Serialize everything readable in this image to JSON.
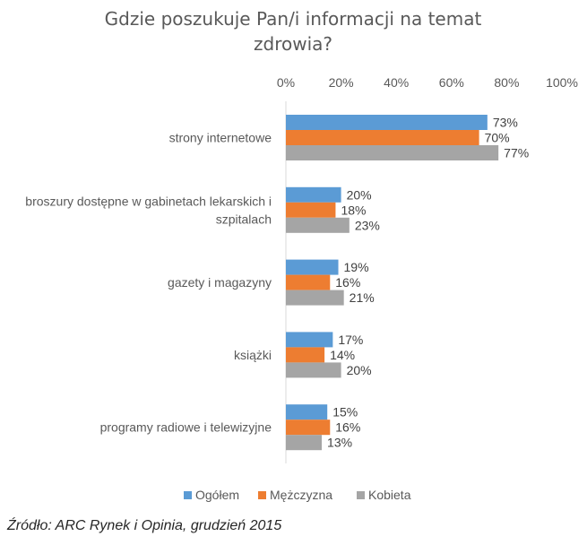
{
  "chart_data": {
    "type": "bar",
    "orientation": "horizontal",
    "title_lines": [
      "Gdzie poszukuje Pan/i informacji na temat",
      "zdrowia?"
    ],
    "categories": [
      [
        "strony internetowe"
      ],
      [
        "broszury dostępne w gabinetach lekarskich i",
        "szpitalach"
      ],
      [
        "gazety i magazyny"
      ],
      [
        "książki"
      ],
      [
        "programy radiowe i telewizyjne"
      ]
    ],
    "series": [
      {
        "name": "Ogółem",
        "color": "#5b9bd5",
        "values": [
          73,
          20,
          19,
          17,
          15
        ]
      },
      {
        "name": "Mężczyzna",
        "color": "#ed7d31",
        "values": [
          70,
          18,
          16,
          14,
          16
        ]
      },
      {
        "name": "Kobieta",
        "color": "#a5a5a5",
        "values": [
          77,
          23,
          21,
          20,
          13
        ]
      }
    ],
    "xlim": [
      0,
      100
    ],
    "x_ticks": [
      "0%",
      "20%",
      "40%",
      "60%",
      "80%",
      "100%"
    ],
    "x_tick_values": [
      0,
      20,
      40,
      60,
      80,
      100
    ],
    "value_suffix": "%",
    "axis_position": "top",
    "grid": false,
    "legend_position": "bottom"
  },
  "source": "Źródło: ARC Rynek i Opinia, grudzień 2015"
}
